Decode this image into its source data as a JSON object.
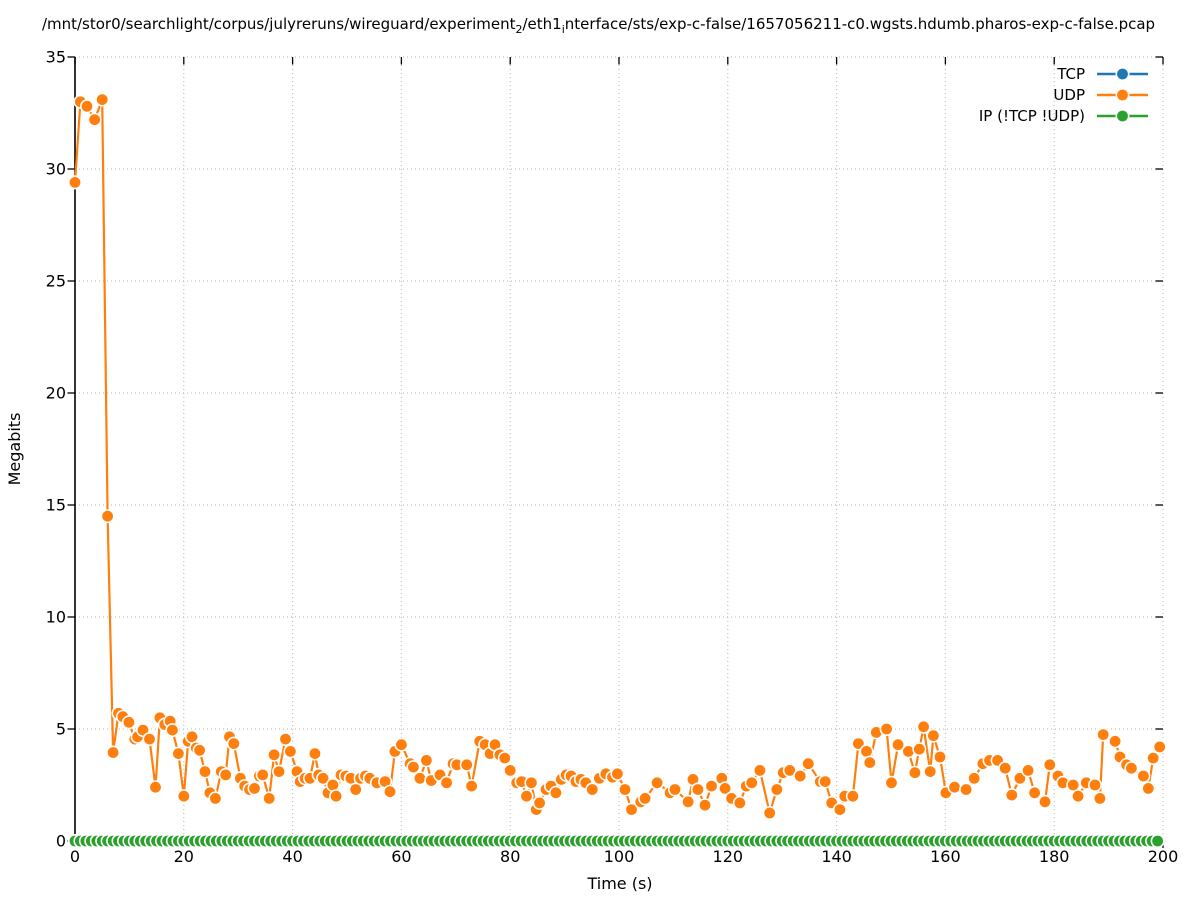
{
  "title": {
    "parts": {
      "p1": "/mnt/stor0/searchlight/corpus/julyreruns/wireguard/experiment",
      "sub1": "2",
      "p2": "/eth1",
      "sub2": "i",
      "p3": "nterface/sts/exp-c-false/1657056211-c0.wgsts.hdumb.pharos-exp-c-false.pcap"
    }
  },
  "chart_data": {
    "type": "line",
    "title": "/mnt/stor0/searchlight/corpus/julyreruns/wireguard/experiment_2/eth1_interface/sts/exp-c-false/1657056211-c0.wgsts.hdumb.pharos-exp-c-false.pcap",
    "xlabel": "Time (s)",
    "ylabel": "Megabits",
    "xlim": [
      0,
      200
    ],
    "ylim": [
      0,
      35
    ],
    "xticks": [
      0,
      20,
      40,
      60,
      80,
      100,
      120,
      140,
      160,
      180,
      200
    ],
    "yticks": [
      0,
      5,
      10,
      15,
      20,
      25,
      30,
      35
    ],
    "grid": true,
    "grid_style": "dotted",
    "legend_position": "top-right",
    "marker": "circle-white-edge",
    "series": [
      {
        "name": "TCP",
        "color": "#1f77b4",
        "constant": {
          "from": 0,
          "to": 199,
          "step": 1,
          "value": 0
        }
      },
      {
        "name": "UDP",
        "color": "#ff7f0e",
        "x": [
          0,
          1,
          2.2,
          3.6,
          5,
          6,
          7,
          8,
          8.8,
          9.9,
          11,
          11.5,
          12.5,
          13.7,
          14.8,
          15.6,
          16.5,
          17.5,
          17.9,
          19,
          20,
          20.8,
          21.5,
          22.3,
          22.9,
          23.9,
          24.8,
          25.8,
          26.9,
          27.7,
          28.4,
          29.2,
          30.4,
          31.2,
          32.1,
          33,
          33.9,
          34.5,
          35.7,
          36.6,
          37.5,
          38.7,
          39.6,
          40.8,
          41.4,
          42.3,
          43.2,
          44.1,
          44.8,
          45.6,
          46.5,
          47.4,
          48,
          48.9,
          49.8,
          50.7,
          51.6,
          52.5,
          53.4,
          54.2,
          55.5,
          57,
          57.9,
          58.8,
          60,
          61.6,
          62.2,
          63.4,
          64.6,
          65.5,
          67.1,
          68.3,
          69.5,
          70.2,
          72,
          72.9,
          74.4,
          75.4,
          76.3,
          77.2,
          78.1,
          79,
          80,
          81.2,
          82.1,
          83,
          83.9,
          84.8,
          85.4,
          86.6,
          87.5,
          88.4,
          89.4,
          90.3,
          91.2,
          92.1,
          93,
          93.9,
          95.1,
          96.4,
          97.6,
          98.8,
          99.7,
          101.1,
          102.3,
          104,
          104.8,
          107,
          109.4,
          110.3,
          112.7,
          113.6,
          114.5,
          115.8,
          117,
          118.9,
          119.5,
          120.7,
          122.2,
          123.4,
          124.4,
          125.9,
          127.7,
          129,
          130.2,
          131.4,
          133.3,
          134.8,
          137,
          137.9,
          139.1,
          140.6,
          141.5,
          143,
          144,
          145.5,
          146.1,
          147.3,
          149.2,
          150.1,
          151.3,
          153.2,
          154.4,
          155.2,
          156,
          157.2,
          157.8,
          159,
          160.1,
          161.7,
          163.8,
          165.3,
          166.9,
          168.1,
          169.6,
          171,
          172.2,
          173.7,
          175.2,
          176.4,
          178.3,
          179.2,
          180.7,
          181.6,
          183.5,
          184.4,
          185.9,
          187.5,
          188.4,
          189,
          191.2,
          192.1,
          193.3,
          194.2,
          196.4,
          197.3,
          198.2,
          199.4
        ],
        "y": [
          29.4,
          33.0,
          32.8,
          32.2,
          33.1,
          14.5,
          3.95,
          5.7,
          5.55,
          5.3,
          4.55,
          4.65,
          4.95,
          4.55,
          2.4,
          5.5,
          5.2,
          5.35,
          4.95,
          3.9,
          2.0,
          4.45,
          4.65,
          4.15,
          4.05,
          3.1,
          2.15,
          1.9,
          3.1,
          2.95,
          4.65,
          4.35,
          2.8,
          2.45,
          2.3,
          2.35,
          2.9,
          2.95,
          1.9,
          3.85,
          3.1,
          4.55,
          4.0,
          3.1,
          2.65,
          2.8,
          2.8,
          3.9,
          2.95,
          2.8,
          2.15,
          2.5,
          2.0,
          2.95,
          2.9,
          2.8,
          2.3,
          2.8,
          2.9,
          2.8,
          2.6,
          2.65,
          2.2,
          4.0,
          4.3,
          3.45,
          3.3,
          2.8,
          3.6,
          2.7,
          2.95,
          2.6,
          3.45,
          3.4,
          3.4,
          2.45,
          4.45,
          4.3,
          3.9,
          4.3,
          3.85,
          3.7,
          3.15,
          2.6,
          2.65,
          2.0,
          2.6,
          1.4,
          1.7,
          2.3,
          2.45,
          2.15,
          2.75,
          2.95,
          2.9,
          2.65,
          2.75,
          2.6,
          2.3,
          2.8,
          3.0,
          2.85,
          3.0,
          2.3,
          1.4,
          1.75,
          1.9,
          2.6,
          2.15,
          2.3,
          1.75,
          2.75,
          2.3,
          1.6,
          2.45,
          2.8,
          2.35,
          1.9,
          1.7,
          2.45,
          2.6,
          3.15,
          1.25,
          2.3,
          3.05,
          3.15,
          2.9,
          3.45,
          2.65,
          2.65,
          1.7,
          1.4,
          2.0,
          2.0,
          4.35,
          4.0,
          3.5,
          4.85,
          5.0,
          2.6,
          4.3,
          4.0,
          3.05,
          4.1,
          5.1,
          3.1,
          4.7,
          3.75,
          2.15,
          2.4,
          2.3,
          2.8,
          3.45,
          3.6,
          3.6,
          3.25,
          2.05,
          2.8,
          3.15,
          2.15,
          1.75,
          3.4,
          2.9,
          2.6,
          2.5,
          2.0,
          2.6,
          2.5,
          1.9,
          4.75,
          4.45,
          3.75,
          3.4,
          3.25,
          2.9,
          2.35,
          3.7,
          4.2
        ]
      },
      {
        "name": "IP (!TCP  !UDP)",
        "color": "#2ca02c",
        "constant": {
          "from": 0,
          "to": 199,
          "step": 1,
          "value": 0
        }
      }
    ]
  },
  "legend": {
    "items": [
      {
        "label": "TCP",
        "color": "#1f77b4"
      },
      {
        "label": "UDP",
        "color": "#ff7f0e"
      },
      {
        "label": "IP (!TCP  !UDP)",
        "color": "#2ca02c"
      }
    ]
  }
}
